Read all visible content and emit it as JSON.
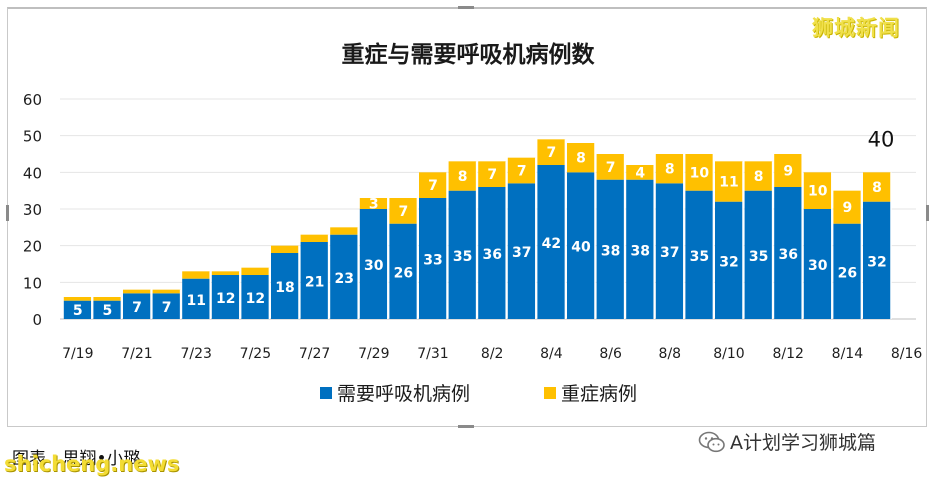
{
  "watermark_top": "狮城新闻",
  "caption": "图表 : 思翔•小璐",
  "site": "shicheng.news",
  "wechat_account": "A计划学习狮城篇",
  "chart_data": {
    "type": "bar",
    "stacked": true,
    "title": "重症与需要呼吸机病例数",
    "xlabel": "",
    "ylabel": "",
    "ylim": [
      0,
      60
    ],
    "yticks": [
      0,
      10,
      20,
      30,
      40,
      50,
      60
    ],
    "grid": true,
    "legend_position": "bottom",
    "x_tick_labels": [
      "7/19",
      "7/21",
      "7/23",
      "7/25",
      "7/27",
      "7/29",
      "7/31",
      "8/2",
      "8/4",
      "8/6",
      "8/8",
      "8/10",
      "8/12",
      "8/14",
      "8/16"
    ],
    "categories": [
      "7/19",
      "7/20",
      "7/21",
      "7/22",
      "7/23",
      "7/24",
      "7/25",
      "7/26",
      "7/27",
      "7/28",
      "7/29",
      "7/30",
      "7/31",
      "8/1",
      "8/2",
      "8/3",
      "8/4",
      "8/5",
      "8/6",
      "8/7",
      "8/8",
      "8/9",
      "8/10",
      "8/11",
      "8/12",
      "8/13",
      "8/14",
      "8/15"
    ],
    "series": [
      {
        "name": "需要呼吸机病例",
        "color": "#0070c0",
        "values": [
          5,
          5,
          7,
          7,
          11,
          12,
          12,
          18,
          21,
          23,
          30,
          26,
          33,
          35,
          36,
          37,
          42,
          40,
          38,
          38,
          37,
          35,
          32,
          35,
          36,
          30,
          26,
          32
        ]
      },
      {
        "name": "重症病例",
        "color": "#ffc000",
        "values": [
          1,
          1,
          1,
          1,
          2,
          1,
          2,
          2,
          2,
          2,
          3,
          7,
          7,
          8,
          7,
          7,
          7,
          8,
          7,
          4,
          8,
          10,
          11,
          8,
          9,
          10,
          9,
          8
        ]
      }
    ],
    "annotations": [
      {
        "category": "8/15",
        "text": "40"
      }
    ]
  }
}
